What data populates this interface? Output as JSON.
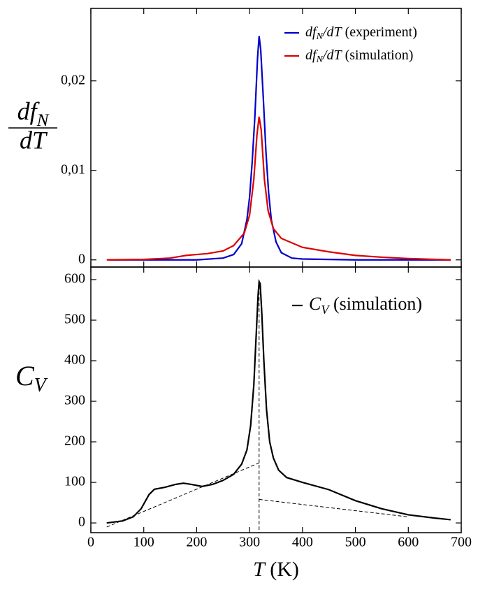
{
  "chart_data": [
    {
      "type": "line",
      "ylabel": {
        "numerator": "dfN",
        "denominator": "dT"
      },
      "xlim": [
        0,
        700
      ],
      "xticks": [
        0,
        100,
        200,
        300,
        400,
        500,
        600,
        700
      ],
      "show_xtick_labels": false,
      "ylim": [
        -0.0008,
        0.0281
      ],
      "yticks": [
        0,
        {
          "value": 0.01,
          "label": "0,01"
        },
        {
          "value": 0.02,
          "label": "0,02"
        }
      ],
      "series": [
        {
          "name": "dfN/dT (experiment)",
          "color": "#0000cc",
          "style": "solid",
          "x": [
            35,
            100,
            200,
            250,
            270,
            285,
            295,
            300,
            305,
            310,
            315,
            318,
            321,
            326,
            331,
            336,
            341,
            350,
            360,
            380,
            400,
            500,
            680
          ],
          "values": [
            0,
            0,
            0,
            0.0002,
            0.0006,
            0.0018,
            0.0045,
            0.007,
            0.011,
            0.016,
            0.0225,
            0.025,
            0.0235,
            0.018,
            0.012,
            0.0075,
            0.0045,
            0.002,
            0.0008,
            0.0002,
            0.0001,
            0,
            0
          ]
        },
        {
          "name": "dfN/dT (simulation)",
          "color": "#dd0000",
          "style": "solid",
          "x": [
            30,
            100,
            150,
            180,
            200,
            220,
            250,
            270,
            290,
            300,
            308,
            314,
            318,
            322,
            328,
            335,
            345,
            360,
            400,
            450,
            500,
            550,
            600,
            680
          ],
          "values": [
            0,
            5e-05,
            0.0002,
            0.0005,
            0.0006,
            0.0007,
            0.001,
            0.0016,
            0.003,
            0.005,
            0.009,
            0.014,
            0.016,
            0.0145,
            0.009,
            0.0055,
            0.0035,
            0.0024,
            0.0014,
            0.0009,
            0.0005,
            0.0003,
            0.00015,
            0
          ]
        }
      ]
    },
    {
      "type": "line",
      "ylabel": "CV",
      "xlabel": "T (K)",
      "xlim": [
        0,
        700
      ],
      "xticks": [
        0,
        100,
        200,
        300,
        400,
        500,
        600,
        700
      ],
      "show_xtick_labels": true,
      "ylim": [
        -24,
        631
      ],
      "yticks": [
        0,
        100,
        200,
        300,
        400,
        500,
        600
      ],
      "series": [
        {
          "name": "CV (simulation)",
          "color": "#000000",
          "style": "solid",
          "x": [
            30,
            60,
            80,
            95,
            110,
            120,
            140,
            160,
            175,
            190,
            210,
            230,
            250,
            270,
            285,
            295,
            302,
            308,
            312,
            316,
            318,
            320,
            323,
            327,
            332,
            338,
            345,
            355,
            370,
            400,
            450,
            500,
            550,
            600,
            650,
            680
          ],
          "values": [
            0,
            5,
            15,
            35,
            70,
            83,
            88,
            95,
            98,
            95,
            90,
            95,
            105,
            120,
            145,
            180,
            240,
            340,
            450,
            560,
            595,
            590,
            520,
            400,
            280,
            200,
            160,
            130,
            112,
            100,
            82,
            55,
            35,
            20,
            12,
            8
          ]
        },
        {
          "color": "#000000",
          "style": "dashed",
          "x": [
            30,
            318
          ],
          "values": [
            -10,
            148
          ]
        },
        {
          "color": "#000000",
          "style": "dashed",
          "x": [
            318,
            318
          ],
          "values": [
            598,
            -24
          ]
        },
        {
          "color": "#000000",
          "style": "dashed",
          "x": [
            318,
            600
          ],
          "values": [
            58,
            15
          ]
        }
      ]
    }
  ]
}
